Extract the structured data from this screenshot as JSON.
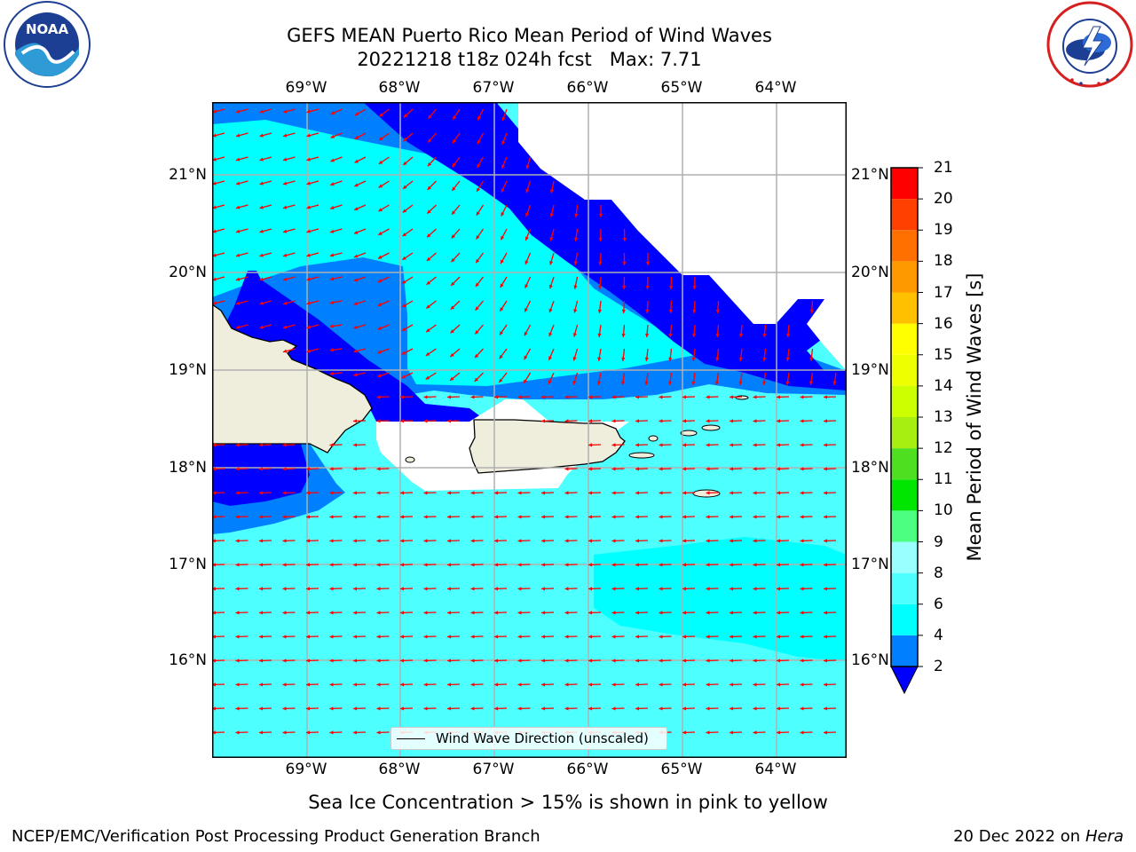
{
  "title": {
    "line1": "GEFS MEAN Puerto Rico Mean Period of Wind Waves",
    "line2": "20221218 t18z 024h fcst   Max: 7.71"
  },
  "logos": {
    "left_icon": "noaa-logo",
    "right_icon": "national-weather-service-logo"
  },
  "map": {
    "lon_labels": [
      "69°W",
      "68°W",
      "67°W",
      "66°W",
      "65°W",
      "64°W"
    ],
    "lat_labels": [
      "21°N",
      "20°N",
      "19°N",
      "18°N",
      "17°N",
      "16°N"
    ],
    "grid": true,
    "colors": {
      "land": "#efeddc",
      "no_data": "#ffffff",
      "arrow": "#ff0000",
      "grid": "#b0b0b0"
    }
  },
  "legend": {
    "label": "Wind Wave Direction (unscaled)"
  },
  "colorbar": {
    "label": "Mean Period of Wind Waves [s]",
    "tick_labels": [
      "21",
      "20",
      "19",
      "18",
      "17",
      "16",
      "15",
      "14",
      "13",
      "12",
      "11",
      "10",
      "9",
      "8",
      "6",
      "4",
      "2"
    ],
    "bins": [
      {
        "from": 2,
        "to": 4,
        "color": "#0080ff"
      },
      {
        "from": 4,
        "to": 6,
        "color": "#00ffff"
      },
      {
        "from": 6,
        "to": 8,
        "color": "#4dffff"
      },
      {
        "from": 8,
        "to": 9,
        "color": "#99ffff"
      },
      {
        "from": 9,
        "to": 10,
        "color": "#4dff80"
      },
      {
        "from": 10,
        "to": 11,
        "color": "#00e600"
      },
      {
        "from": 11,
        "to": 12,
        "color": "#4ddf20"
      },
      {
        "from": 12,
        "to": 13,
        "color": "#a6ef10"
      },
      {
        "from": 13,
        "to": 14,
        "color": "#ccff00"
      },
      {
        "from": 14,
        "to": 15,
        "color": "#eeff00"
      },
      {
        "from": 15,
        "to": 16,
        "color": "#ffff00"
      },
      {
        "from": 16,
        "to": 17,
        "color": "#ffc000"
      },
      {
        "from": 17,
        "to": 18,
        "color": "#ff9900"
      },
      {
        "from": 18,
        "to": 19,
        "color": "#ff7000"
      },
      {
        "from": 19,
        "to": 20,
        "color": "#ff4000"
      },
      {
        "from": 20,
        "to": 21,
        "color": "#ff0000"
      }
    ],
    "under_color": "#0000ff",
    "ocean_colors": {
      "deep": "#0000ff",
      "mid": "#0080ff",
      "light": "#00ffff",
      "pale": "#4dffff"
    }
  },
  "caption": "Sea Ice Concentration > 15% is shown in pink to yellow",
  "footer": {
    "left": "NCEP/EMC/Verification Post Processing Product Generation Branch",
    "date": "20 Dec 2022 on",
    "machine": "Hera"
  }
}
